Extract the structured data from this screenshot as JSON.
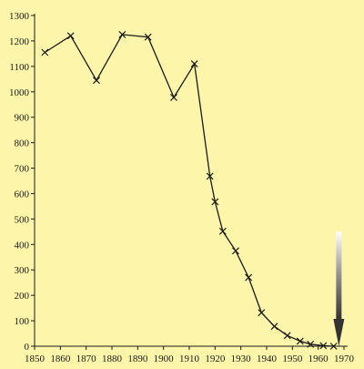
{
  "chart_data": {
    "type": "line",
    "title": "",
    "xlabel": "",
    "ylabel": "",
    "xlim": [
      1850,
      1970
    ],
    "ylim": [
      0,
      1300
    ],
    "x_ticks": [
      "1850",
      "1860",
      "1870",
      "1880",
      "1890",
      "1900",
      "1910",
      "1920",
      "1930",
      "1940",
      "1950",
      "1960",
      "1970"
    ],
    "y_ticks": [
      "0",
      "100",
      "200",
      "300",
      "400",
      "500",
      "600",
      "700",
      "800",
      "900",
      "1000",
      "1100",
      "1200",
      "1300"
    ],
    "grid": false,
    "marker": "x",
    "series": [
      {
        "x": [
          1854,
          1864,
          1874,
          1884,
          1894,
          1904,
          1912,
          1918,
          1920,
          1923,
          1928,
          1933,
          1938,
          1943,
          1948,
          1953,
          1957,
          1962,
          1966
        ],
        "y": [
          1155,
          1220,
          1045,
          1225,
          1215,
          978,
          1110,
          668,
          568,
          452,
          375,
          270,
          132,
          78,
          42,
          20,
          8,
          2,
          0
        ]
      }
    ],
    "annotations": [
      {
        "type": "arrow",
        "direction": "down",
        "at_x": 1968,
        "from_y": 450,
        "to_y": 0
      }
    ],
    "colors": {
      "background": "#fdf5a9",
      "ink": "#1a1a1a"
    }
  }
}
